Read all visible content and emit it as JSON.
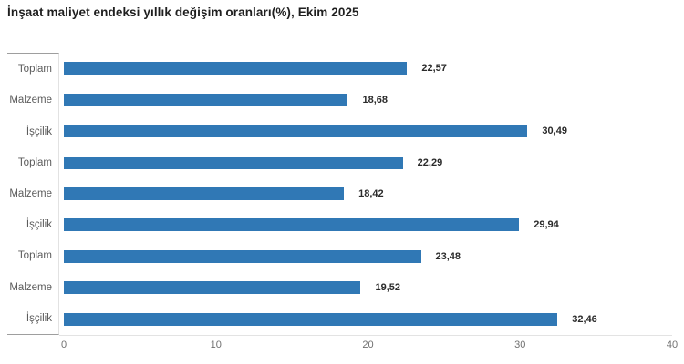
{
  "title": "İnşaat maliyet endeksi yıllık değişim oranları(%), Ekim 2025",
  "chart_data": {
    "type": "bar",
    "orientation": "horizontal",
    "title": "İnşaat maliyet endeksi yıllık değişim oranları(%), Ekim 2025",
    "categories": [
      "Toplam",
      "Malzeme",
      "İşçilik",
      "Toplam",
      "Malzeme",
      "İşçilik",
      "Toplam",
      "Malzeme",
      "İşçilik"
    ],
    "values": [
      22.57,
      18.68,
      30.49,
      22.29,
      18.42,
      29.94,
      23.48,
      19.52,
      32.46
    ],
    "value_labels": [
      "22,57",
      "18,68",
      "30,49",
      "22,29",
      "18,42",
      "29,94",
      "23,48",
      "19,52",
      "32,46"
    ],
    "x_ticks": [
      "0",
      "10",
      "20",
      "30",
      "40"
    ],
    "x_tick_values": [
      0,
      10,
      20,
      30,
      40
    ],
    "xlim": [
      0,
      40
    ],
    "xlabel": "",
    "ylabel": "",
    "grid": false,
    "legend_position": "none",
    "bar_color": "#3078b5"
  }
}
